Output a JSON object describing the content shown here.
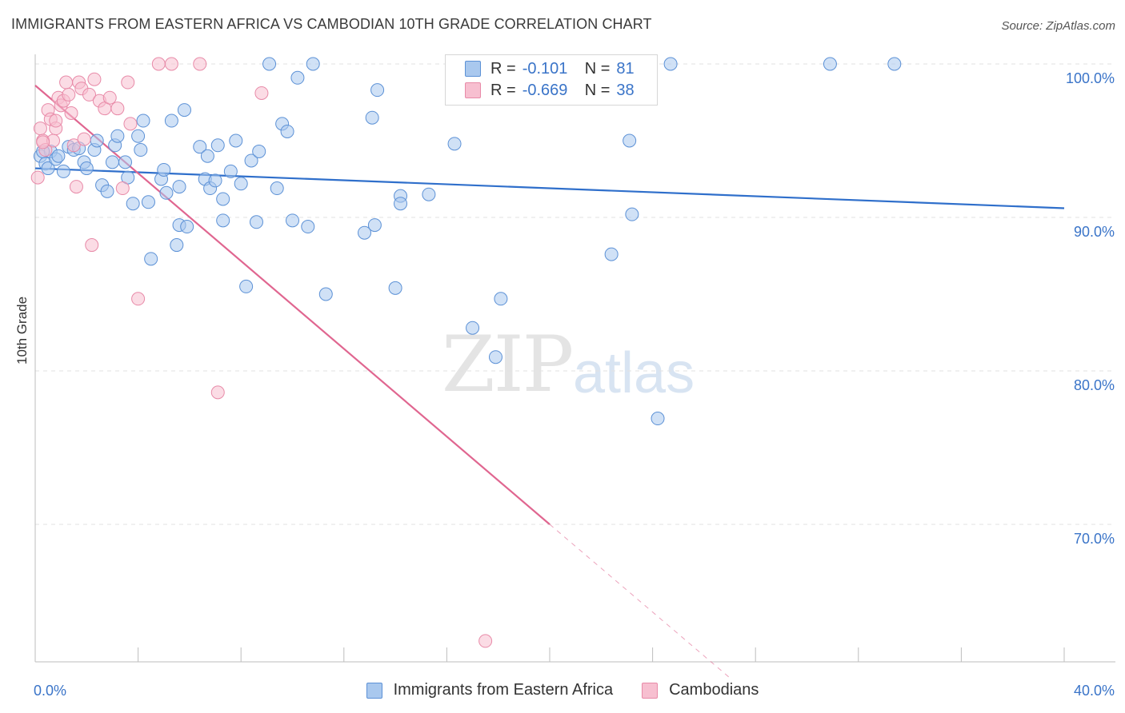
{
  "title": "IMMIGRANTS FROM EASTERN AFRICA VS CAMBODIAN 10TH GRADE CORRELATION CHART",
  "source": "Source: ZipAtlas.com",
  "watermark": {
    "zip": "ZIP",
    "atlas": "atlas"
  },
  "legend": {
    "series1": {
      "r_label": "R =",
      "r_value": "-0.101",
      "n_label": "N =",
      "n_value": "81"
    },
    "series2": {
      "r_label": "R =",
      "r_value": "-0.669",
      "n_label": "N =",
      "n_value": "38"
    }
  },
  "bottom_legend": {
    "series1": "Immigrants from Eastern Africa",
    "series2": "Cambodians"
  },
  "colors": {
    "blue_fill": "#a9c8ee",
    "blue_stroke": "#5c91d6",
    "blue_line": "#2f6fcb",
    "pink_fill": "#f7bfd0",
    "pink_stroke": "#e88aa8",
    "pink_line": "#e06690",
    "axis_text": "#3a74c8"
  },
  "chart_data": {
    "type": "scatter",
    "title": "IMMIGRANTS FROM EASTERN AFRICA VS CAMBODIAN 10TH GRADE CORRELATION CHART",
    "xlabel": "",
    "ylabel": "10th Grade",
    "xlim": [
      0,
      40
    ],
    "ylim": [
      60,
      101
    ],
    "x_tick_labels": [
      "0.0%",
      "40.0%"
    ],
    "y_ticks": [
      70,
      80,
      90,
      100
    ],
    "y_tick_labels": [
      "70.0%",
      "80.0%",
      "90.0%",
      "100.0%"
    ],
    "grid": true,
    "series": [
      {
        "name": "Immigrants from Eastern Africa",
        "points": [
          [
            0.2,
            94.0
          ],
          [
            0.4,
            93.5
          ],
          [
            0.5,
            93.2
          ],
          [
            0.6,
            94.3
          ],
          [
            0.8,
            93.8
          ],
          [
            0.9,
            94.0
          ],
          [
            1.1,
            93.0
          ],
          [
            1.3,
            94.6
          ],
          [
            1.5,
            94.4
          ],
          [
            1.7,
            94.5
          ],
          [
            1.9,
            93.6
          ],
          [
            2.0,
            93.2
          ],
          [
            2.3,
            94.4
          ],
          [
            2.4,
            95.0
          ],
          [
            2.6,
            92.1
          ],
          [
            2.8,
            91.7
          ],
          [
            3.0,
            93.6
          ],
          [
            3.1,
            94.7
          ],
          [
            3.2,
            95.3
          ],
          [
            3.5,
            93.6
          ],
          [
            3.6,
            92.6
          ],
          [
            3.8,
            90.9
          ],
          [
            4.0,
            95.3
          ],
          [
            4.1,
            94.4
          ],
          [
            4.2,
            96.3
          ],
          [
            4.4,
            91.0
          ],
          [
            4.5,
            87.3
          ],
          [
            4.9,
            92.5
          ],
          [
            5.0,
            93.1
          ],
          [
            5.1,
            91.6
          ],
          [
            5.3,
            96.3
          ],
          [
            5.5,
            88.2
          ],
          [
            5.6,
            92.0
          ],
          [
            5.6,
            89.5
          ],
          [
            5.8,
            97.0
          ],
          [
            5.9,
            89.4
          ],
          [
            6.4,
            94.6
          ],
          [
            6.6,
            92.5
          ],
          [
            6.7,
            94.0
          ],
          [
            6.8,
            91.9
          ],
          [
            7.0,
            92.4
          ],
          [
            7.1,
            94.7
          ],
          [
            7.3,
            91.2
          ],
          [
            7.3,
            89.8
          ],
          [
            7.6,
            93.0
          ],
          [
            7.8,
            95.0
          ],
          [
            8.0,
            92.2
          ],
          [
            8.2,
            85.5
          ],
          [
            8.4,
            93.7
          ],
          [
            8.6,
            89.7
          ],
          [
            8.7,
            94.3
          ],
          [
            9.1,
            100.0
          ],
          [
            9.4,
            91.9
          ],
          [
            9.6,
            96.1
          ],
          [
            9.8,
            95.6
          ],
          [
            10.0,
            89.8
          ],
          [
            10.2,
            99.1
          ],
          [
            10.6,
            89.4
          ],
          [
            10.8,
            100.0
          ],
          [
            11.3,
            85.0
          ],
          [
            12.8,
            89.0
          ],
          [
            13.1,
            96.5
          ],
          [
            13.2,
            89.5
          ],
          [
            13.3,
            98.3
          ],
          [
            14.0,
            85.4
          ],
          [
            14.2,
            91.4
          ],
          [
            14.2,
            90.9
          ],
          [
            15.3,
            91.5
          ],
          [
            16.3,
            94.8
          ],
          [
            17.0,
            82.8
          ],
          [
            17.5,
            100.0
          ],
          [
            17.9,
            80.9
          ],
          [
            18.1,
            84.7
          ],
          [
            22.4,
            87.6
          ],
          [
            23.1,
            95.0
          ],
          [
            23.2,
            90.2
          ],
          [
            24.2,
            76.9
          ],
          [
            24.7,
            100.0
          ],
          [
            30.9,
            100.0
          ],
          [
            33.4,
            100.0
          ],
          [
            0.3,
            94.3
          ]
        ],
        "trend": {
          "x": [
            0,
            40
          ],
          "y": [
            93.2,
            90.6
          ]
        }
      },
      {
        "name": "Cambodians",
        "points": [
          [
            0.1,
            92.6
          ],
          [
            0.2,
            95.8
          ],
          [
            0.3,
            95.0
          ],
          [
            0.4,
            94.4
          ],
          [
            0.5,
            97.0
          ],
          [
            0.6,
            96.4
          ],
          [
            0.7,
            95.0
          ],
          [
            0.8,
            95.8
          ],
          [
            0.8,
            96.3
          ],
          [
            0.9,
            97.8
          ],
          [
            1.0,
            97.3
          ],
          [
            1.1,
            97.6
          ],
          [
            1.2,
            98.8
          ],
          [
            1.3,
            98.0
          ],
          [
            1.4,
            96.8
          ],
          [
            1.5,
            94.7
          ],
          [
            1.6,
            92.0
          ],
          [
            1.7,
            98.8
          ],
          [
            1.8,
            98.4
          ],
          [
            1.9,
            95.1
          ],
          [
            2.1,
            98.0
          ],
          [
            2.2,
            88.2
          ],
          [
            2.3,
            99.0
          ],
          [
            2.5,
            97.6
          ],
          [
            2.7,
            97.1
          ],
          [
            2.9,
            97.8
          ],
          [
            3.2,
            97.1
          ],
          [
            3.4,
            91.9
          ],
          [
            3.6,
            98.8
          ],
          [
            3.7,
            96.1
          ],
          [
            4.0,
            84.7
          ],
          [
            4.8,
            100.0
          ],
          [
            5.3,
            100.0
          ],
          [
            6.4,
            100.0
          ],
          [
            7.1,
            78.6
          ],
          [
            8.8,
            98.1
          ],
          [
            17.5,
            62.4
          ],
          [
            0.3,
            94.9
          ]
        ],
        "trend": {
          "x": [
            0,
            20
          ],
          "y": [
            98.6,
            70.0
          ]
        },
        "trend_extension": {
          "x": [
            20,
            27
          ],
          "y": [
            70.0,
            60.0
          ]
        }
      }
    ]
  }
}
